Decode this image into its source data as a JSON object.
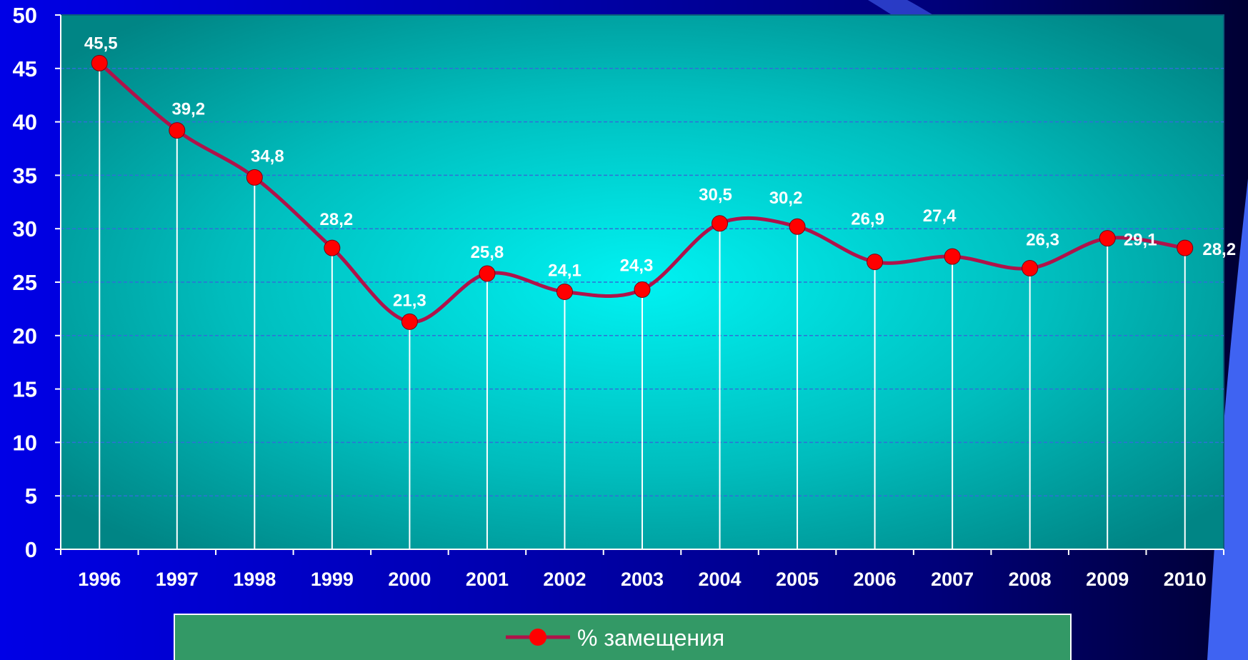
{
  "chart_data": {
    "type": "line",
    "categories": [
      "1996",
      "1997",
      "1998",
      "1999",
      "2000",
      "2001",
      "2002",
      "2003",
      "2004",
      "2005",
      "2006",
      "2007",
      "2008",
      "2009",
      "2010"
    ],
    "series": [
      {
        "name": "% замещения",
        "values": [
          45.5,
          39.2,
          34.8,
          28.2,
          21.3,
          25.8,
          24.1,
          24.3,
          30.5,
          30.2,
          26.9,
          27.4,
          26.3,
          29.1,
          28.2
        ]
      }
    ],
    "data_labels": [
      "45,5",
      "39,2",
      "34,8",
      "28,2",
      "21,3",
      "25,8",
      "24,1",
      "24,3",
      "30,5",
      "30,2",
      "26,9",
      "27,4",
      "26,3",
      "29,1",
      "28,2"
    ],
    "y_ticks": [
      "0",
      "5",
      "10",
      "15",
      "20",
      "25",
      "30",
      "35",
      "40",
      "45",
      "50"
    ],
    "ylim": [
      0,
      50
    ],
    "grid": true,
    "drop_lines": true,
    "legend_position": "bottom"
  },
  "colors": {
    "line": "#b0124a",
    "marker": "#ff0000",
    "grid": "#2f6fd8",
    "drop_line": "#ffffff",
    "plot_center": "#00f2f2",
    "plot_edge": "#008a8a",
    "legend_bg": "#339966"
  }
}
